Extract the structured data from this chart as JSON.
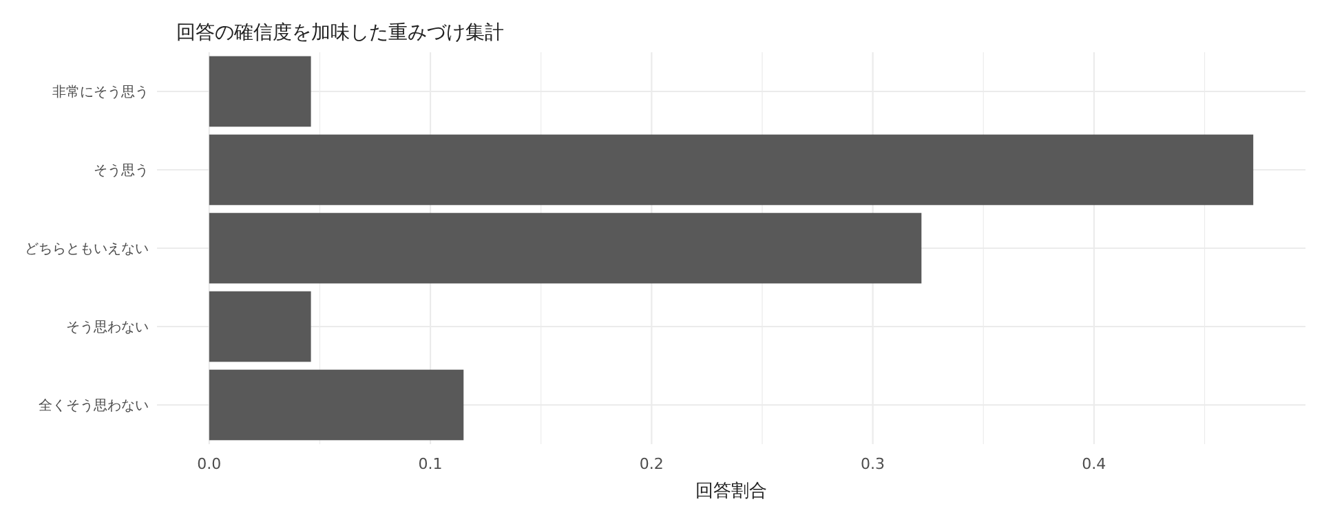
{
  "chart_data": {
    "type": "bar",
    "orientation": "horizontal",
    "title": "回答の確信度を加味した重みづけ集計",
    "xlabel": "回答割合",
    "categories": [
      "非常にそう思う",
      "そう思う",
      "どちらともいえない",
      "そう思わない",
      "全くそう思わない"
    ],
    "values": [
      0.046,
      0.472,
      0.322,
      0.046,
      0.115
    ],
    "color": "#595959",
    "xlim": [
      -0.0236,
      0.4956
    ],
    "xticks": [
      {
        "value": 0,
        "label": "0.0"
      },
      {
        "value": 0.05,
        "label": null
      },
      0.1,
      {
        "value": 0.15,
        "label": null
      },
      0.2,
      {
        "value": 0.25,
        "label": null
      },
      0.3,
      {
        "value": 0.35,
        "label": null
      },
      0.4,
      {
        "value": 0.45,
        "label": null
      }
    ],
    "grid": true
  }
}
